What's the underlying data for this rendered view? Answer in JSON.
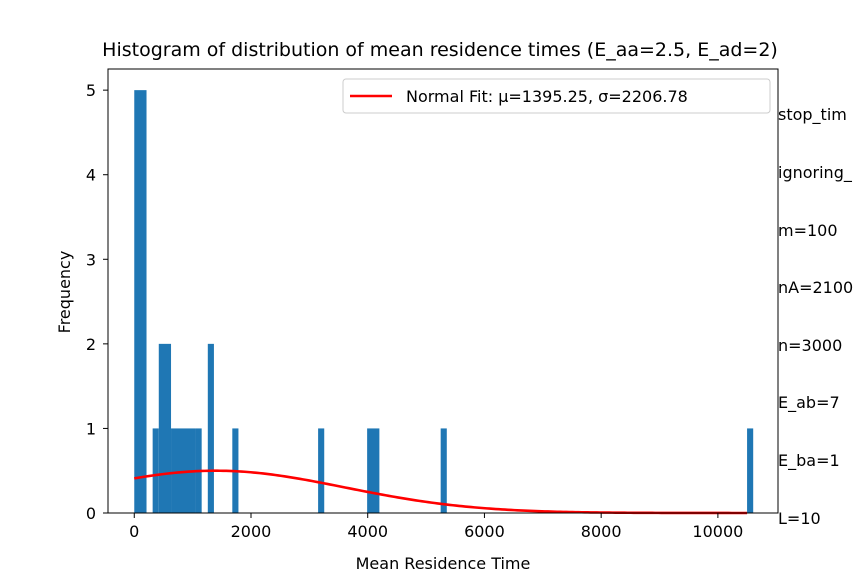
{
  "chart_data": {
    "type": "bar",
    "title": "Histogram of distribution of mean residence times (E_aa=2.5, E_ad=2)",
    "xlabel": "Mean Residence Time",
    "ylabel": "Frequency",
    "xlim": [
      -450,
      11030
    ],
    "ylim": [
      0,
      5.25
    ],
    "x_ticks": [
      0,
      2000,
      4000,
      6000,
      8000,
      10000
    ],
    "y_ticks": [
      0,
      1,
      2,
      3,
      4,
      5
    ],
    "bar_color": "#1f77b4",
    "bars": [
      {
        "x0": 0,
        "x1": 210,
        "count": 5
      },
      {
        "x0": 315,
        "x1": 420,
        "count": 1
      },
      {
        "x0": 420,
        "x1": 630,
        "count": 2
      },
      {
        "x0": 630,
        "x1": 1050,
        "count": 1
      },
      {
        "x0": 1050,
        "x1": 1155,
        "count": 1
      },
      {
        "x0": 1260,
        "x1": 1365,
        "count": 2
      },
      {
        "x0": 1680,
        "x1": 1785,
        "count": 1
      },
      {
        "x0": 3150,
        "x1": 3255,
        "count": 1
      },
      {
        "x0": 3990,
        "x1": 4200,
        "count": 1
      },
      {
        "x0": 5250,
        "x1": 5355,
        "count": 1
      },
      {
        "x0": 10500,
        "x1": 10605,
        "count": 1
      }
    ],
    "fit_line": {
      "name": "Normal Fit: μ=1395.25, σ=2206.78",
      "color": "#ff0000",
      "mu": 1395.25,
      "sigma": 2206.78,
      "peak": 0.5,
      "x_range": [
        0,
        10500
      ]
    },
    "legend_placement": "top-right",
    "grid": false
  },
  "side_notes": [
    "stop_tim",
    "ignoring_",
    "m=100",
    "nA=2100",
    "n=3000",
    "E_ab=7",
    "E_ba=1",
    "L=10"
  ]
}
